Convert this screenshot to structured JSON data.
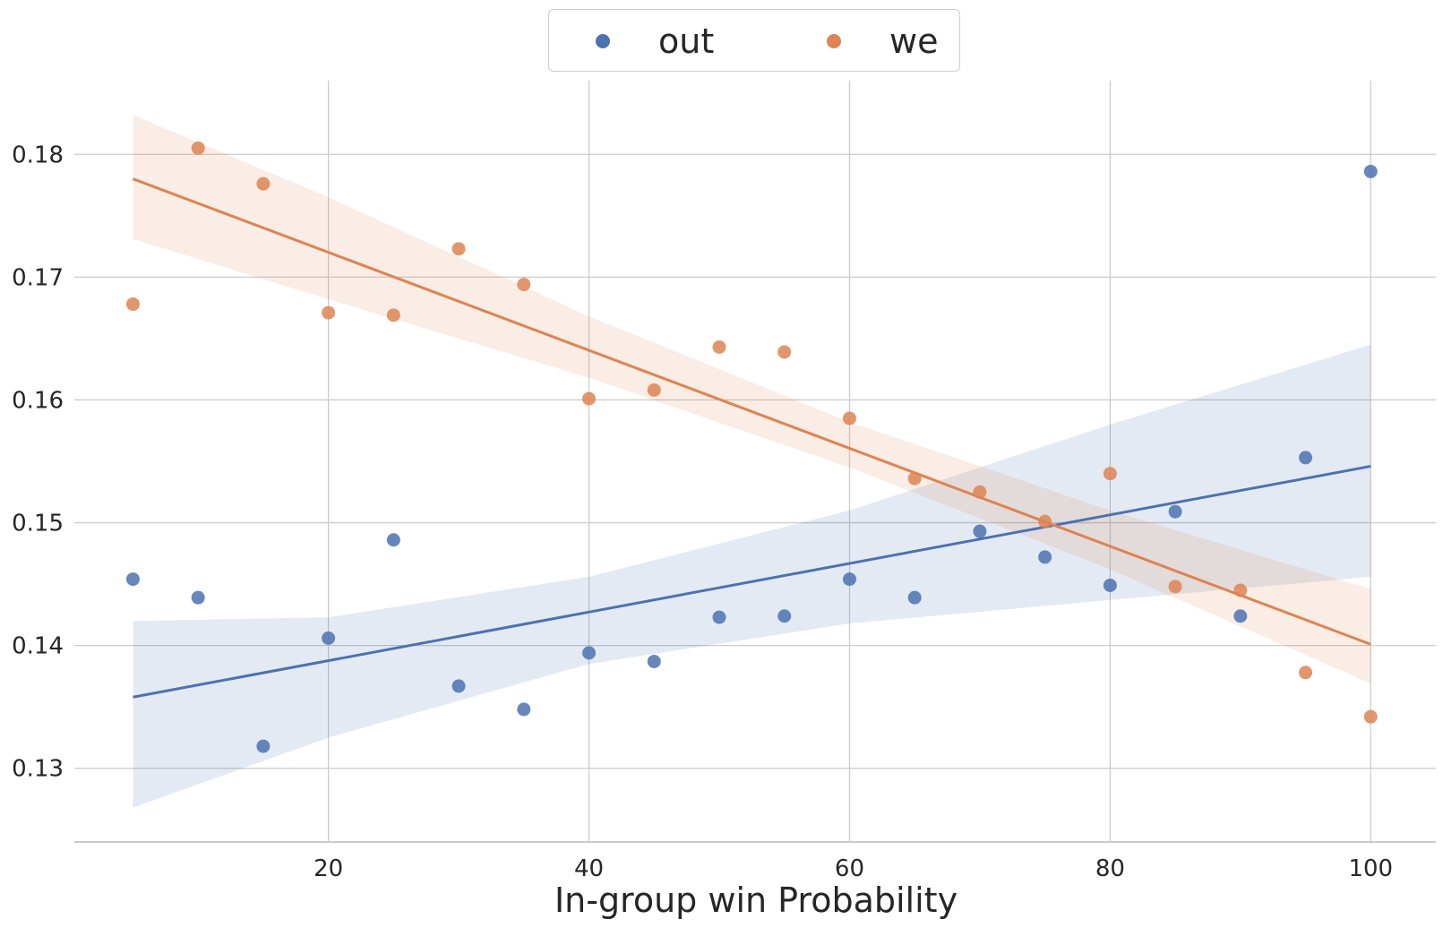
{
  "chart_data": {
    "type": "scatter",
    "title": "",
    "xlabel": "In-group win Probability",
    "ylabel": "",
    "xlim": [
      0.5,
      105
    ],
    "ylim": [
      0.124,
      0.186
    ],
    "x_ticks": [
      20,
      40,
      60,
      80,
      100
    ],
    "x_tick_labels": [
      "20",
      "40",
      "60",
      "80",
      "100"
    ],
    "y_ticks": [
      0.13,
      0.14,
      0.15,
      0.16,
      0.17,
      0.18
    ],
    "y_tick_labels": [
      "0.13",
      "0.14",
      "0.15",
      "0.16",
      "0.17",
      "0.18"
    ],
    "grid": true,
    "legend_position": "top-center",
    "series": [
      {
        "name": "out",
        "color": "#4c72b0",
        "x": [
          5,
          10,
          15,
          20,
          25,
          30,
          35,
          40,
          45,
          50,
          55,
          60,
          65,
          70,
          75,
          80,
          85,
          90,
          95,
          100
        ],
        "y": [
          0.1454,
          0.1439,
          0.1318,
          0.1406,
          0.1486,
          0.1367,
          0.1348,
          0.1394,
          0.1387,
          0.1423,
          0.1424,
          0.1454,
          0.1439,
          0.1493,
          0.1472,
          0.1449,
          0.1509,
          0.1424,
          0.1553,
          0.1786
        ],
        "regression_line": {
          "x": [
            5,
            100
          ],
          "y": [
            0.1358,
            0.1546
          ]
        },
        "confidence_band": {
          "x": [
            5,
            20,
            40,
            60,
            80,
            100
          ],
          "lower": [
            0.1268,
            0.1325,
            0.1385,
            0.1418,
            0.1437,
            0.1456
          ],
          "upper": [
            0.142,
            0.1423,
            0.1456,
            0.151,
            0.158,
            0.1645
          ]
        }
      },
      {
        "name": "we",
        "color": "#dd8452",
        "x": [
          5,
          10,
          15,
          20,
          25,
          30,
          35,
          40,
          45,
          50,
          55,
          60,
          65,
          70,
          75,
          80,
          85,
          90,
          95,
          100
        ],
        "y": [
          0.1678,
          0.1805,
          0.1776,
          0.1671,
          0.1669,
          0.1723,
          0.1694,
          0.1601,
          0.1608,
          0.1643,
          0.1639,
          0.1585,
          0.1536,
          0.1525,
          0.1501,
          0.154,
          0.1448,
          0.1445,
          0.1378,
          0.1342
        ],
        "regression_line": {
          "x": [
            5,
            100
          ],
          "y": [
            0.178,
            0.1401
          ]
        },
        "confidence_band": {
          "x": [
            5,
            20,
            40,
            60,
            80,
            100
          ],
          "lower": [
            0.1731,
            0.1682,
            0.1618,
            0.1545,
            0.1462,
            0.1369
          ],
          "upper": [
            0.1832,
            0.1765,
            0.1668,
            0.1582,
            0.151,
            0.1446
          ]
        }
      }
    ]
  }
}
